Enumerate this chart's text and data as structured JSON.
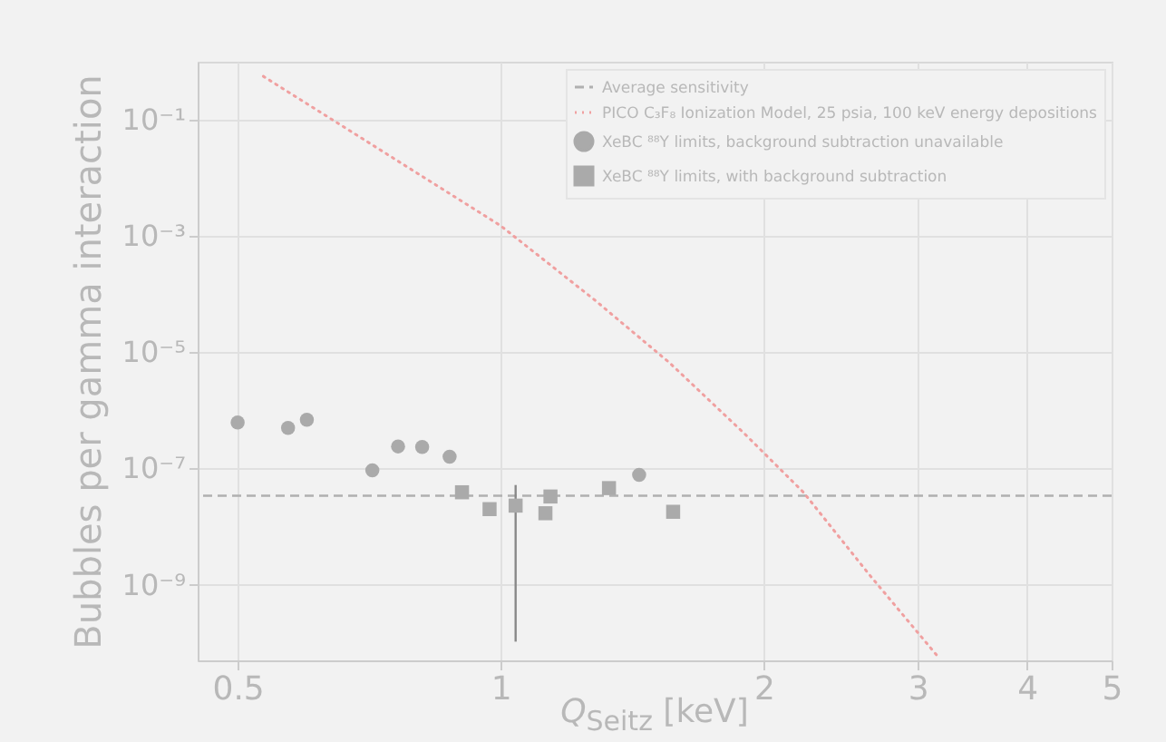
{
  "chart_data": {
    "type": "scatter",
    "xlabel": "Q$_{Seitz}$ [keV]",
    "ylabel": "Bubbles per gamma interaction",
    "log": "xy",
    "grid": true,
    "legend": "top right",
    "xlim": [
      0.45,
      5
    ],
    "xticks": [
      0.5,
      1,
      2,
      3,
      4,
      5
    ],
    "ylim": [
      5e-11,
      1
    ],
    "yticks": [
      {
        "value": 0.1,
        "label": "10⁻¹"
      },
      {
        "value": 0.001,
        "label": "10⁻³"
      },
      {
        "value": 1e-05,
        "label": "10⁻⁵"
      },
      {
        "value": 1e-07,
        "label": "10⁻⁷"
      },
      {
        "value": 1e-09,
        "label": "10⁻⁹"
      }
    ],
    "ref_lines": [
      {
        "axis": "y",
        "value": 3.4e-08,
        "label": "Average sensitivity",
        "color": "#b0b0b0",
        "line_style": "dashed"
      }
    ],
    "series": [
      {
        "name": "PICO C₃F₈ Ionization Model, 25 psia, 100 keV energy depositions",
        "type": "line",
        "line_style": "dotted",
        "marker": "none",
        "color": "#f0a0a0",
        "x": [
          0.535,
          0.7,
          1.0,
          1.28,
          1.56,
          1.9,
          2.22,
          2.64,
          3.17
        ],
        "values": [
          0.56,
          0.044,
          0.0015,
          8e-05,
          6.6e-06,
          4e-07,
          3.9e-08,
          1.5e-09,
          5.6e-11
        ]
      },
      {
        "name": "XeBC ⁸⁸Y limits, background subtraction unavailable",
        "marker": "circle",
        "color": "#aaaaaa",
        "x": [
          0.5,
          0.571,
          0.6,
          0.713,
          0.763,
          0.813,
          0.874,
          1.44
        ],
        "values": [
          6.2e-07,
          5e-07,
          6.9e-07,
          9.3e-08,
          2.4e-07,
          2.35e-07,
          1.6e-07,
          7.8e-08
        ]
      },
      {
        "name": "XeBC ⁸⁸Y limits, with background subtraction",
        "marker": "square",
        "color": "#aaaaaa",
        "x": [
          0.903,
          0.971,
          1.04,
          1.125,
          1.14,
          1.33,
          1.575
        ],
        "values": [
          3.9e-08,
          2e-08,
          2.3e-08,
          1.7e-08,
          3.3e-08,
          4.6e-08,
          1.8e-08
        ],
        "errors": [
          null,
          null,
          [
            1.05e-10,
            5.2e-08
          ],
          null,
          null,
          null,
          null
        ]
      }
    ]
  }
}
